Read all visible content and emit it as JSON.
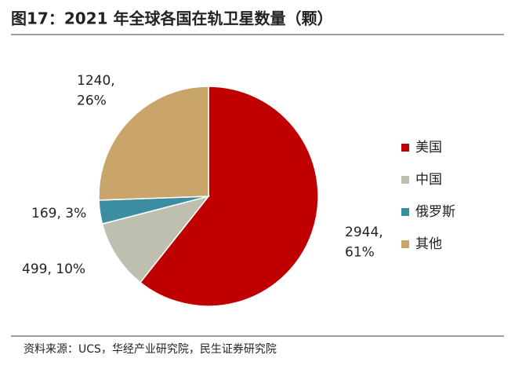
{
  "chart_data": {
    "type": "pie",
    "title": "图17：2021 年全球各国在轨卫星数量（颗）",
    "categories": [
      "美国",
      "中国",
      "俄罗斯",
      "其他"
    ],
    "values": [
      2944,
      499,
      169,
      1240
    ],
    "value_labels": [
      "2944,\n61%",
      "499, 10%",
      "169, 3%",
      "1240,\n26%"
    ],
    "colors": [
      "#c00000",
      "#bfbfb0",
      "#3b8ea0",
      "#c9a56b"
    ],
    "source": "资料来源：UCS，华经产业研究院，民生证券研究院"
  }
}
